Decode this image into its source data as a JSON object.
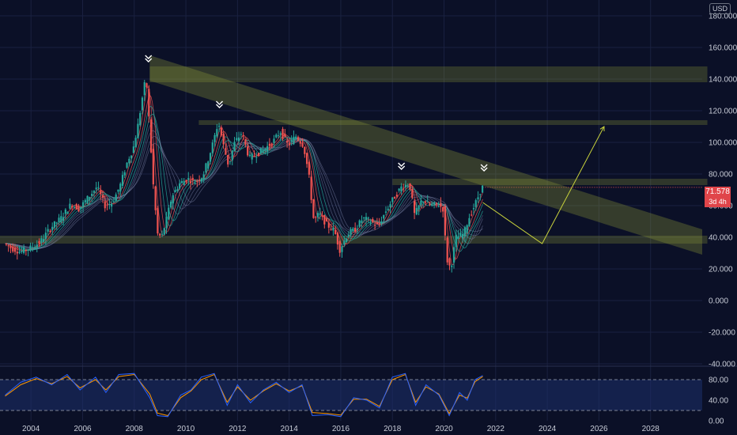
{
  "currency": "USD",
  "last_price": {
    "value": "71.578",
    "countdown": "3d 4h",
    "color": "#e0454a"
  },
  "colors": {
    "background": "#0b1027",
    "grid": "#1a2140",
    "bull": "#26a69a",
    "bear": "#ef5350",
    "zone": "#8f9a37",
    "projection": "#c8d23c",
    "stoch_k": "#2962ff",
    "stoch_d": "#ff9800"
  },
  "chart_data": {
    "type": "candlestick",
    "x_ticks": [
      "2004",
      "2006",
      "2008",
      "2010",
      "2012",
      "2014",
      "2016",
      "2018",
      "2020",
      "2022",
      "2024",
      "2026",
      "2028"
    ],
    "y_ticks": [
      "180.000",
      "160.000",
      "140.000",
      "120.000",
      "100.000",
      "80.000",
      "60.000",
      "40.000",
      "20.000",
      "0.000",
      "-20.000",
      "-40.000"
    ],
    "ylim": [
      -40,
      190
    ],
    "xlim": [
      2002.8,
      2030
    ],
    "oscillator_ticks": [
      "80.00",
      "40.00",
      "0.00"
    ],
    "oscillator_ylim": [
      0,
      100
    ],
    "oscillator_levels": [
      80,
      20
    ],
    "price_path": [
      [
        2003.0,
        36
      ],
      [
        2003.3,
        33
      ],
      [
        2003.6,
        31
      ],
      [
        2004.0,
        33
      ],
      [
        2004.4,
        37
      ],
      [
        2004.8,
        46
      ],
      [
        2005.2,
        52
      ],
      [
        2005.6,
        61
      ],
      [
        2005.9,
        58
      ],
      [
        2006.3,
        66
      ],
      [
        2006.6,
        72
      ],
      [
        2006.9,
        60
      ],
      [
        2007.2,
        62
      ],
      [
        2007.5,
        73
      ],
      [
        2007.8,
        89
      ],
      [
        2008.0,
        96
      ],
      [
        2008.2,
        112
      ],
      [
        2008.4,
        133
      ],
      [
        2008.5,
        141
      ],
      [
        2008.6,
        118
      ],
      [
        2008.8,
        68
      ],
      [
        2008.95,
        42
      ],
      [
        2009.1,
        40
      ],
      [
        2009.3,
        52
      ],
      [
        2009.5,
        66
      ],
      [
        2009.8,
        74
      ],
      [
        2010.1,
        77
      ],
      [
        2010.4,
        75
      ],
      [
        2010.7,
        79
      ],
      [
        2010.9,
        89
      ],
      [
        2011.1,
        100
      ],
      [
        2011.3,
        113
      ],
      [
        2011.5,
        98
      ],
      [
        2011.7,
        85
      ],
      [
        2011.9,
        99
      ],
      [
        2012.2,
        106
      ],
      [
        2012.5,
        90
      ],
      [
        2012.8,
        93
      ],
      [
        2013.1,
        96
      ],
      [
        2013.4,
        100
      ],
      [
        2013.7,
        107
      ],
      [
        2014.0,
        98
      ],
      [
        2014.3,
        104
      ],
      [
        2014.6,
        98
      ],
      [
        2014.8,
        80
      ],
      [
        2015.0,
        50
      ],
      [
        2015.2,
        55
      ],
      [
        2015.5,
        48
      ],
      [
        2015.8,
        44
      ],
      [
        2016.0,
        32
      ],
      [
        2016.3,
        42
      ],
      [
        2016.6,
        45
      ],
      [
        2016.9,
        52
      ],
      [
        2017.2,
        50
      ],
      [
        2017.5,
        47
      ],
      [
        2017.8,
        57
      ],
      [
        2018.1,
        65
      ],
      [
        2018.4,
        72
      ],
      [
        2018.7,
        74
      ],
      [
        2018.9,
        54
      ],
      [
        2019.2,
        64
      ],
      [
        2019.5,
        60
      ],
      [
        2019.8,
        61
      ],
      [
        2020.0,
        58
      ],
      [
        2020.15,
        26
      ],
      [
        2020.3,
        20
      ],
      [
        2020.5,
        40
      ],
      [
        2020.8,
        42
      ],
      [
        2021.0,
        52
      ],
      [
        2021.3,
        63
      ],
      [
        2021.5,
        71.578
      ]
    ],
    "stoch_k": [
      [
        2003.0,
        50
      ],
      [
        2003.6,
        75
      ],
      [
        2004.2,
        85
      ],
      [
        2004.8,
        70
      ],
      [
        2005.4,
        90
      ],
      [
        2005.9,
        60
      ],
      [
        2006.5,
        85
      ],
      [
        2006.9,
        55
      ],
      [
        2007.4,
        90
      ],
      [
        2008.0,
        92
      ],
      [
        2008.6,
        45
      ],
      [
        2008.9,
        10
      ],
      [
        2009.3,
        8
      ],
      [
        2009.8,
        50
      ],
      [
        2010.2,
        60
      ],
      [
        2010.6,
        85
      ],
      [
        2011.1,
        92
      ],
      [
        2011.6,
        30
      ],
      [
        2012.0,
        70
      ],
      [
        2012.5,
        35
      ],
      [
        2013.0,
        60
      ],
      [
        2013.5,
        75
      ],
      [
        2014.0,
        55
      ],
      [
        2014.5,
        70
      ],
      [
        2014.9,
        10
      ],
      [
        2015.5,
        12
      ],
      [
        2016.0,
        8
      ],
      [
        2016.5,
        45
      ],
      [
        2017.0,
        40
      ],
      [
        2017.5,
        25
      ],
      [
        2018.0,
        85
      ],
      [
        2018.5,
        92
      ],
      [
        2018.9,
        30
      ],
      [
        2019.3,
        70
      ],
      [
        2019.8,
        50
      ],
      [
        2020.2,
        10
      ],
      [
        2020.6,
        55
      ],
      [
        2020.9,
        40
      ],
      [
        2021.2,
        80
      ],
      [
        2021.5,
        88
      ]
    ],
    "stoch_d": [
      [
        2003.0,
        48
      ],
      [
        2003.6,
        70
      ],
      [
        2004.2,
        82
      ],
      [
        2004.8,
        72
      ],
      [
        2005.4,
        86
      ],
      [
        2005.9,
        64
      ],
      [
        2006.5,
        80
      ],
      [
        2006.9,
        60
      ],
      [
        2007.4,
        86
      ],
      [
        2008.0,
        90
      ],
      [
        2008.6,
        52
      ],
      [
        2008.9,
        15
      ],
      [
        2009.3,
        10
      ],
      [
        2009.8,
        45
      ],
      [
        2010.2,
        58
      ],
      [
        2010.6,
        80
      ],
      [
        2011.1,
        90
      ],
      [
        2011.6,
        36
      ],
      [
        2012.0,
        66
      ],
      [
        2012.5,
        40
      ],
      [
        2013.0,
        58
      ],
      [
        2013.5,
        72
      ],
      [
        2014.0,
        58
      ],
      [
        2014.5,
        68
      ],
      [
        2014.9,
        16
      ],
      [
        2015.5,
        14
      ],
      [
        2016.0,
        11
      ],
      [
        2016.5,
        42
      ],
      [
        2017.0,
        42
      ],
      [
        2017.5,
        28
      ],
      [
        2018.0,
        80
      ],
      [
        2018.5,
        90
      ],
      [
        2018.9,
        36
      ],
      [
        2019.3,
        66
      ],
      [
        2019.8,
        52
      ],
      [
        2020.2,
        14
      ],
      [
        2020.6,
        50
      ],
      [
        2020.9,
        44
      ],
      [
        2021.2,
        76
      ],
      [
        2021.5,
        86
      ]
    ],
    "zones": [
      {
        "x": [
          2008.6,
          2030.2
        ],
        "y": [
          138,
          148
        ]
      },
      {
        "x": [
          2010.5,
          2030.2
        ],
        "y": [
          111,
          114
        ]
      },
      {
        "x": [
          2018.0,
          2030.2
        ],
        "y": [
          73,
          77
        ]
      },
      {
        "x": [
          2002.8,
          2030.2
        ],
        "y": [
          36,
          41
        ]
      }
    ],
    "trend_channel": {
      "start": [
        2008.6,
        147
      ],
      "end": [
        2030.0,
        37
      ],
      "width": 8
    },
    "projection": [
      [
        2021.5,
        62
      ],
      [
        2023.8,
        36
      ],
      [
        2026.2,
        110
      ]
    ],
    "peak_markers": [
      [
        2008.55,
        152
      ],
      [
        2011.3,
        123
      ],
      [
        2018.35,
        84
      ],
      [
        2021.55,
        83
      ]
    ]
  }
}
